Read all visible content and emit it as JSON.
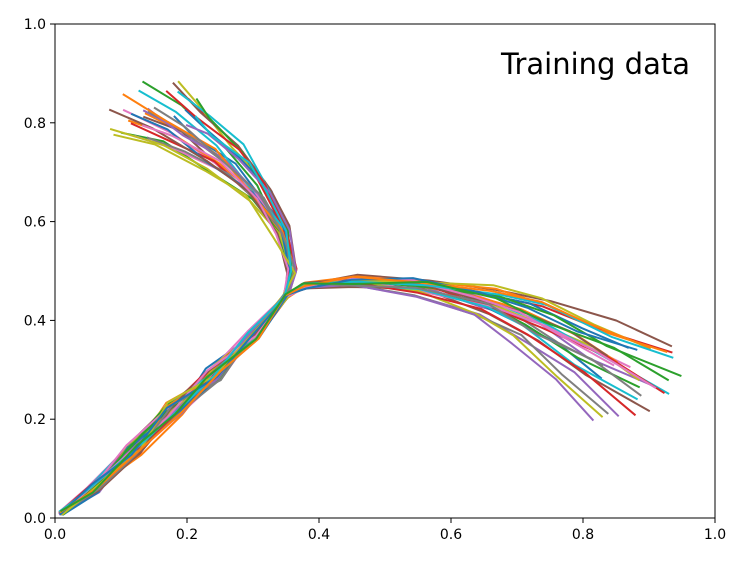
{
  "chart_data": {
    "type": "line",
    "title": "",
    "xlabel": "",
    "ylabel": "",
    "xlim": [
      0.0,
      1.0
    ],
    "ylim": [
      0.0,
      1.0
    ],
    "xticks": [
      "0.0",
      "0.2",
      "0.4",
      "0.6",
      "0.8",
      "1.0"
    ],
    "yticks": [
      "0.0",
      "0.2",
      "0.4",
      "0.6",
      "0.8",
      "1.0"
    ],
    "grid": false,
    "legend": "none",
    "annotations": [
      {
        "text": "Training data",
        "position": "top-right"
      }
    ],
    "trunk": [
      [
        0.01,
        0.01
      ],
      [
        0.06,
        0.06
      ],
      [
        0.12,
        0.14
      ],
      [
        0.18,
        0.22
      ],
      [
        0.24,
        0.29
      ],
      [
        0.3,
        0.37
      ],
      [
        0.35,
        0.45
      ]
    ],
    "upper_branch": [
      [
        0.35,
        0.45
      ],
      [
        0.36,
        0.5
      ],
      [
        0.345,
        0.58
      ],
      [
        0.31,
        0.66
      ],
      [
        0.26,
        0.73
      ],
      [
        0.2,
        0.79
      ],
      [
        0.15,
        0.83
      ]
    ],
    "lower_branch": [
      [
        0.35,
        0.45
      ],
      [
        0.38,
        0.47
      ],
      [
        0.45,
        0.48
      ],
      [
        0.55,
        0.47
      ],
      [
        0.65,
        0.44
      ],
      [
        0.72,
        0.4
      ],
      [
        0.8,
        0.34
      ],
      [
        0.88,
        0.28
      ]
    ],
    "series_colors": [
      "#1f77b4",
      "#ff7f0e",
      "#2ca02c",
      "#d62728",
      "#9467bd",
      "#8c564b",
      "#e377c2",
      "#7f7f7f",
      "#bcbd22",
      "#17becf"
    ],
    "n_upper": 30,
    "n_lower": 30
  }
}
